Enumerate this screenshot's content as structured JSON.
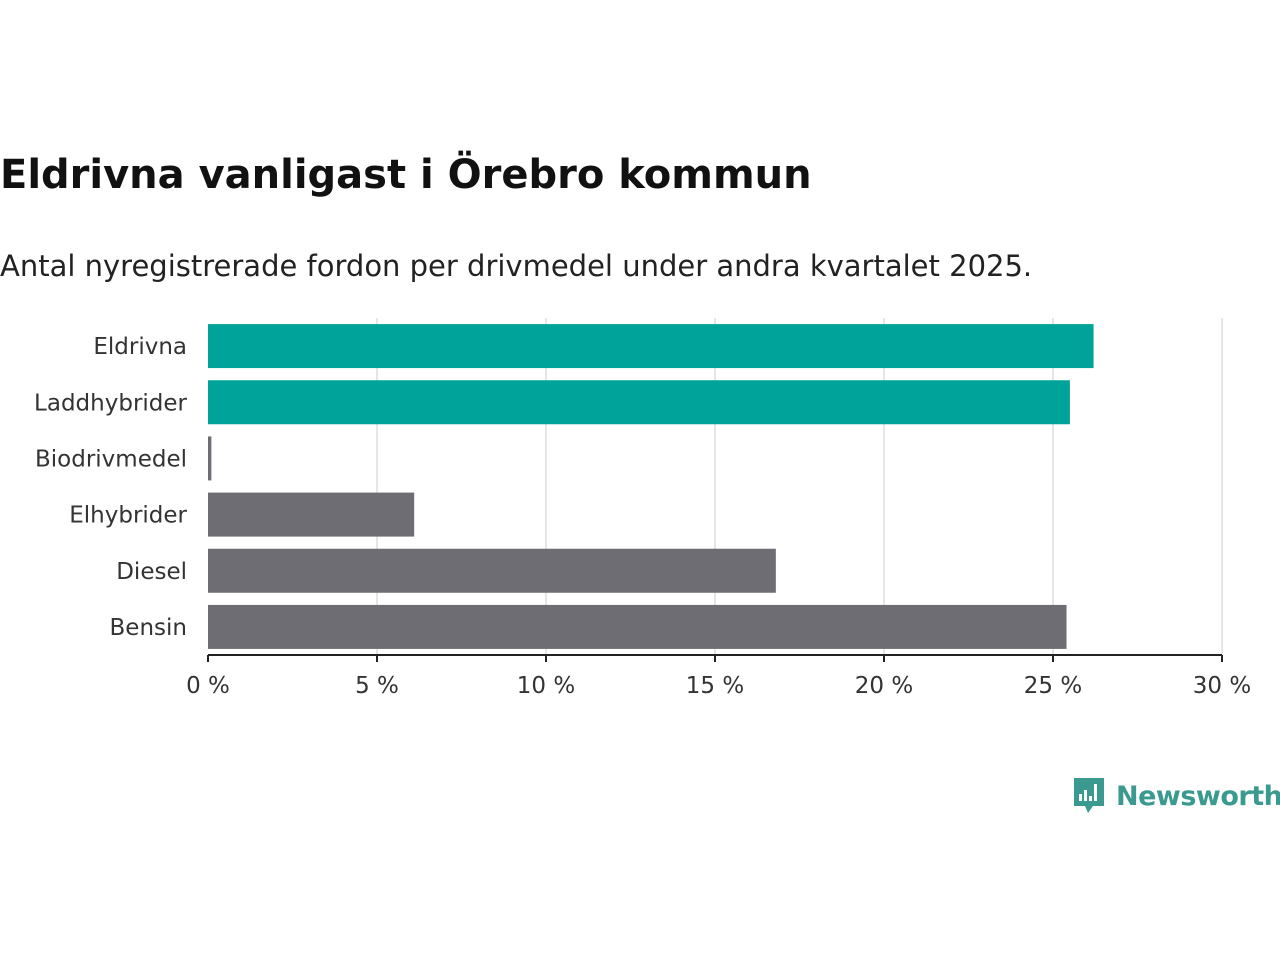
{
  "title": "Eldrivna vanligast i Örebro kommun",
  "subtitle": "Antal nyregistrerade fordon per drivmedel under andra kvartalet 2025.",
  "brand": {
    "name": "Newsworthy",
    "icon": "newsworthy-logo-icon",
    "color": "#3b9a8f"
  },
  "colors": {
    "highlight": "#00a39a",
    "default": "#6e6d73",
    "grid": "#dddddd",
    "axis": "#222222"
  },
  "chart_data": {
    "type": "bar",
    "orientation": "horizontal",
    "categories": [
      "Eldrivna",
      "Laddhybrider",
      "Biodrivmedel",
      "Elhybrider",
      "Diesel",
      "Bensin"
    ],
    "values": [
      26.2,
      25.5,
      0.1,
      6.1,
      16.8,
      25.4
    ],
    "highlighted": [
      "Eldrivna",
      "Laddhybrider"
    ],
    "x_ticks": [
      0,
      5,
      10,
      15,
      20,
      25,
      30
    ],
    "tick_labels": [
      "0 %",
      "5 %",
      "10 %",
      "15 %",
      "20 %",
      "25 %",
      "30 %"
    ],
    "xlim": [
      0,
      30
    ],
    "grid": true,
    "legend": "none"
  }
}
